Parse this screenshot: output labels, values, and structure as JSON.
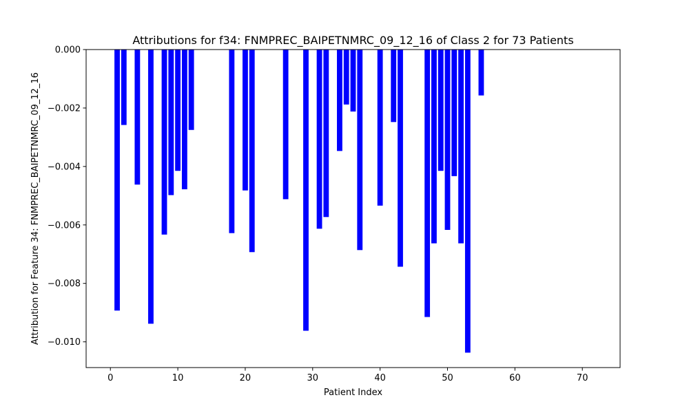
{
  "chart_data": {
    "type": "bar",
    "title": "Attributions for f34: FNMPREC_BAIPETNMRC_09_12_16 of Class 2 for 73 Patients",
    "xlabel": "Patient Index",
    "ylabel": "Attribution for Feature 34: FNMPREC_BAIPETNMRC_09_12_16",
    "xlim": [
      -3.6,
      75.6
    ],
    "ylim": [
      -0.01088,
      0.0
    ],
    "x_ticks": [
      0,
      10,
      20,
      30,
      40,
      50,
      60,
      70
    ],
    "x_tick_labels": [
      "0",
      "10",
      "20",
      "30",
      "40",
      "50",
      "60",
      "70"
    ],
    "y_ticks": [
      0.0,
      -0.002,
      -0.004,
      -0.006,
      -0.008,
      -0.01
    ],
    "y_tick_labels": [
      "0.000",
      "−0.002",
      "−0.004",
      "−0.006",
      "−0.008",
      "−0.010"
    ],
    "bar_color": "#0000ff",
    "grid": false,
    "points": [
      {
        "x": 1,
        "y": -0.00893
      },
      {
        "x": 2,
        "y": -0.00258
      },
      {
        "x": 4,
        "y": -0.00462
      },
      {
        "x": 6,
        "y": -0.00938
      },
      {
        "x": 8,
        "y": -0.00633
      },
      {
        "x": 9,
        "y": -0.00498
      },
      {
        "x": 10,
        "y": -0.00415
      },
      {
        "x": 11,
        "y": -0.00478
      },
      {
        "x": 12,
        "y": -0.00275
      },
      {
        "x": 18,
        "y": -0.00628
      },
      {
        "x": 20,
        "y": -0.00482
      },
      {
        "x": 21,
        "y": -0.00693
      },
      {
        "x": 26,
        "y": -0.00512
      },
      {
        "x": 29,
        "y": -0.00962
      },
      {
        "x": 31,
        "y": -0.00613
      },
      {
        "x": 32,
        "y": -0.00573
      },
      {
        "x": 34,
        "y": -0.00347
      },
      {
        "x": 35,
        "y": -0.00188
      },
      {
        "x": 36,
        "y": -0.00212
      },
      {
        "x": 37,
        "y": -0.00686
      },
      {
        "x": 40,
        "y": -0.00534
      },
      {
        "x": 42,
        "y": -0.00248
      },
      {
        "x": 43,
        "y": -0.00743
      },
      {
        "x": 47,
        "y": -0.00915
      },
      {
        "x": 48,
        "y": -0.00663
      },
      {
        "x": 49,
        "y": -0.00415
      },
      {
        "x": 50,
        "y": -0.00617
      },
      {
        "x": 51,
        "y": -0.00433
      },
      {
        "x": 52,
        "y": -0.00663
      },
      {
        "x": 53,
        "y": -0.01037
      },
      {
        "x": 55,
        "y": -0.00157
      }
    ]
  }
}
